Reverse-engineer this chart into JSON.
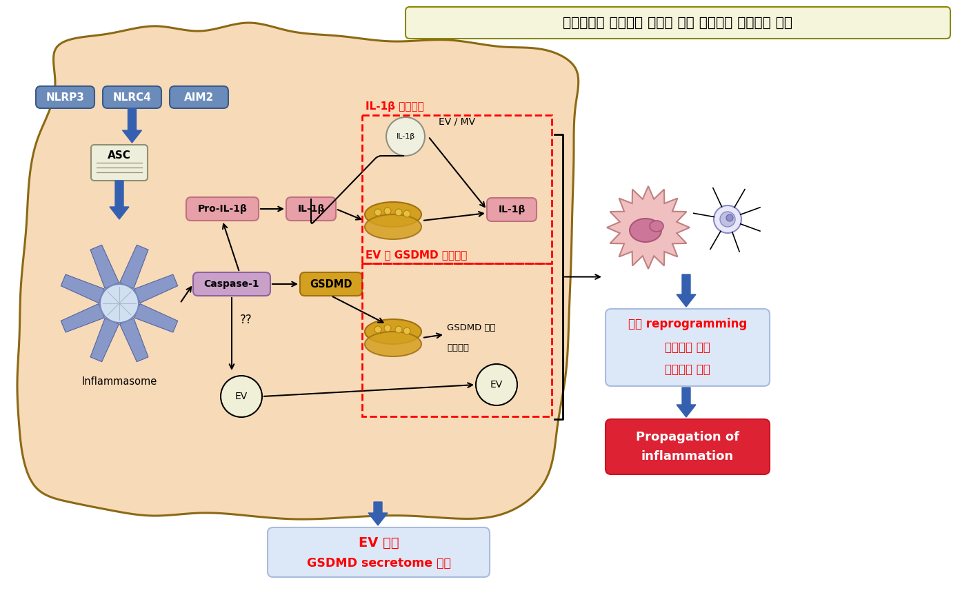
{
  "title": "인플라마좀 작용기전 규명에 의한 염증확산 매개인자 발굴",
  "label_il1b_secretion": "IL-1β 분비기전",
  "label_ev_gsdmd": "EV 및 GSDMD 분비인자",
  "label_gsdmd_mediator_1": "GSDMD 매개",
  "label_gsdmd_mediator_2": "분비인자",
  "label_inflammasome": "Inflammasome",
  "label_ev_mv": "EV / MV",
  "label_qq": "??",
  "label_ev_circle": "EV",
  "label_il1b_in_circle": "IL-1β",
  "label_ev_analysis_1": "EV 분석",
  "label_ev_analysis_2": "GSDMD secretome 분석",
  "label_reprogramming_1": "세포 reprogramming",
  "label_reprogramming_2": "염증인자 분석",
  "label_reprogramming_3": "신경세포 손상",
  "label_propagation_1": "Propagation of",
  "label_propagation_2": "inflammation",
  "cell_bg": "#f7dab8",
  "cell_border": "#8b6914",
  "title_bg": "#f5f5dc",
  "title_border": "#888800"
}
